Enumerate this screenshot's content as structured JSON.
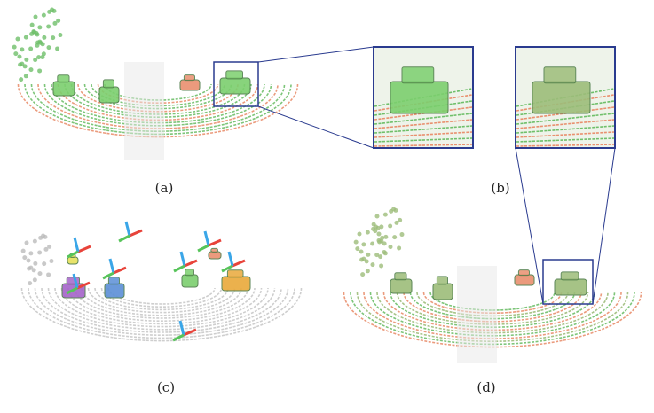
{
  "figure": {
    "panels": [
      {
        "id": "a",
        "label": "(a)"
      },
      {
        "id": "b",
        "label": "(b)"
      },
      {
        "id": "c",
        "label": "(c)"
      },
      {
        "id": "d",
        "label": "(d)"
      }
    ]
  },
  "colors": {
    "scan_green": "#6fbf6a",
    "scan_red": "#e9906f",
    "scan_gray": "#c9c9c9",
    "car_green": "#7ccf6e",
    "zoom_frame": "#2a3b8f",
    "axis_red": "#e8433a",
    "axis_green": "#57c45a",
    "axis_blue": "#3aa6e8",
    "obj_purple": "#a564c9",
    "obj_blue": "#5b8fd6",
    "obj_orange": "#e9a93a",
    "obj_yellow": "#e6e05a"
  }
}
